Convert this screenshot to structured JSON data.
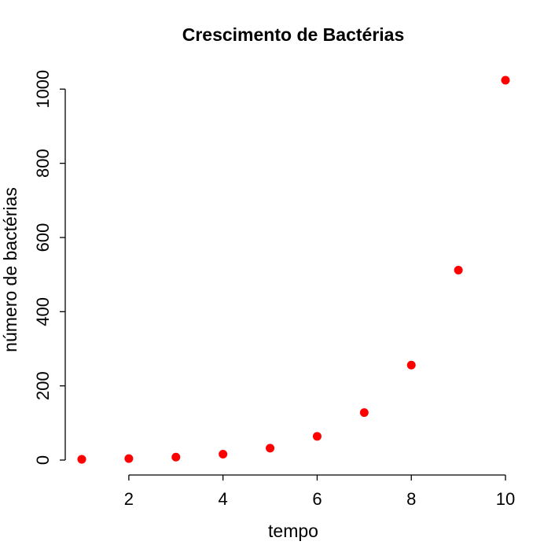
{
  "chart_data": {
    "type": "scatter",
    "title": "Crescimento de Bactérias",
    "xlabel": "tempo",
    "ylabel": "número de bactérias",
    "x": [
      1,
      2,
      3,
      4,
      5,
      6,
      7,
      8,
      9,
      10
    ],
    "y": [
      2,
      4,
      8,
      16,
      32,
      64,
      128,
      256,
      512,
      1024
    ],
    "xlim": [
      1,
      10
    ],
    "ylim": [
      0,
      1024
    ],
    "xticks": [
      2,
      4,
      6,
      8,
      10
    ],
    "yticks": [
      0,
      200,
      400,
      600,
      800,
      1000
    ],
    "grid": false,
    "point_color": "#ff0000",
    "point_shape": "filled-circle"
  }
}
